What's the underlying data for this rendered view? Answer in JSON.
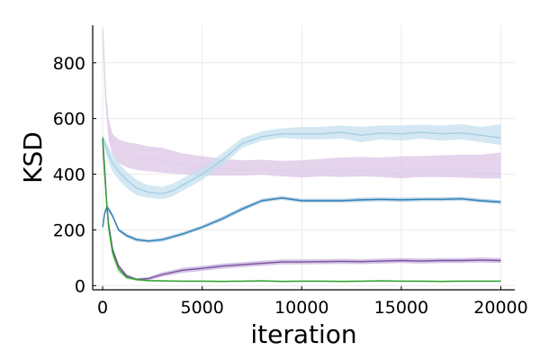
{
  "chart_data": {
    "type": "line",
    "title": "",
    "xlabel": "iteration",
    "ylabel": "KSD",
    "xlim": [
      -500,
      20700
    ],
    "ylim": [
      -15,
      935
    ],
    "xticks": [
      0,
      5000,
      10000,
      15000,
      20000
    ],
    "xtick_labels": [
      "0",
      "5000",
      "10000",
      "15000",
      "20000"
    ],
    "yticks": [
      0,
      200,
      400,
      600,
      800
    ],
    "ytick_labels": [
      "0",
      "200",
      "400",
      "600",
      "800"
    ],
    "grid": true,
    "legend": "none",
    "series": [
      {
        "color": "#e2cfe9",
        "band_color": "#dcc6e6",
        "x": [
          0,
          150,
          300,
          500,
          800,
          1200,
          1700,
          2300,
          3000,
          4000,
          5000,
          6000,
          7000,
          8000,
          9000,
          10000,
          11000,
          12000,
          13000,
          14000,
          15000,
          16000,
          17000,
          18000,
          19000,
          20000
        ],
        "mean": [
          920,
          680,
          560,
          505,
          480,
          465,
          460,
          455,
          450,
          435,
          425,
          418,
          415,
          420,
          412,
          410,
          415,
          410,
          412,
          408,
          405,
          412,
          410,
          408,
          405,
          402
        ],
        "lower": [
          915,
          650,
          520,
          470,
          440,
          425,
          415,
          410,
          405,
          400,
          395,
          395,
          395,
          398,
          392,
          388,
          392,
          390,
          392,
          390,
          385,
          390,
          390,
          388,
          385,
          385
        ],
        "upper": [
          925,
          710,
          600,
          545,
          525,
          515,
          510,
          500,
          495,
          475,
          465,
          455,
          450,
          452,
          448,
          450,
          455,
          460,
          462,
          460,
          465,
          465,
          468,
          470,
          470,
          478
        ]
      },
      {
        "color": "#a6cee3",
        "band_color": "#c4e0ee",
        "x": [
          0,
          150,
          300,
          500,
          800,
          1200,
          1700,
          2300,
          3000,
          3500,
          4000,
          5000,
          6000,
          7000,
          8000,
          9000,
          10000,
          11000,
          12000,
          13000,
          14000,
          15000,
          16000,
          17000,
          18000,
          19000,
          20000
        ],
        "mean": [
          535,
          500,
          470,
          440,
          410,
          380,
          350,
          335,
          330,
          340,
          360,
          400,
          450,
          510,
          535,
          545,
          545,
          545,
          550,
          540,
          548,
          545,
          550,
          545,
          548,
          540,
          530
        ],
        "lower": [
          530,
          480,
          440,
          410,
          380,
          350,
          325,
          315,
          310,
          320,
          340,
          380,
          430,
          495,
          520,
          530,
          525,
          525,
          528,
          515,
          525,
          520,
          528,
          520,
          525,
          515,
          505
        ],
        "upper": [
          540,
          520,
          500,
          470,
          440,
          410,
          380,
          360,
          355,
          365,
          385,
          425,
          475,
          530,
          555,
          565,
          570,
          570,
          575,
          570,
          575,
          575,
          578,
          575,
          580,
          570,
          580
        ]
      },
      {
        "color": "#2e7db5",
        "band_color": "#a9c9e2",
        "x": [
          0,
          100,
          200,
          300,
          500,
          800,
          1200,
          1700,
          2300,
          3000,
          3500,
          4000,
          5000,
          6000,
          7000,
          8000,
          9000,
          10000,
          11000,
          12000,
          13000,
          14000,
          15000,
          16000,
          17000,
          18000,
          19000,
          20000
        ],
        "mean": [
          210,
          260,
          280,
          275,
          250,
          200,
          180,
          165,
          160,
          165,
          175,
          185,
          210,
          240,
          275,
          305,
          315,
          305,
          305,
          305,
          308,
          310,
          308,
          310,
          310,
          312,
          305,
          300
        ],
        "lower": [
          205,
          250,
          270,
          265,
          242,
          193,
          173,
          158,
          154,
          158,
          168,
          178,
          203,
          232,
          267,
          298,
          308,
          298,
          298,
          298,
          300,
          303,
          300,
          303,
          303,
          305,
          298,
          293
        ],
        "upper": [
          215,
          270,
          290,
          285,
          258,
          207,
          187,
          172,
          166,
          172,
          182,
          192,
          217,
          248,
          283,
          312,
          322,
          312,
          312,
          312,
          316,
          317,
          316,
          317,
          317,
          319,
          312,
          307
        ]
      },
      {
        "color": "#7b509e",
        "band_color": "#c7b2dc",
        "x": [
          0,
          100,
          200,
          300,
          500,
          800,
          1200,
          1700,
          2300,
          3000,
          4000,
          5000,
          6000,
          7000,
          8000,
          9000,
          10000,
          11000,
          12000,
          13000,
          14000,
          15000,
          16000,
          17000,
          18000,
          19000,
          20000
        ],
        "mean": [
          520,
          400,
          300,
          220,
          130,
          70,
          35,
          22,
          25,
          40,
          55,
          62,
          70,
          75,
          80,
          85,
          85,
          86,
          87,
          86,
          88,
          90,
          88,
          90,
          90,
          92,
          90
        ],
        "lower": [
          515,
          385,
          285,
          205,
          120,
          62,
          28,
          17,
          19,
          32,
          46,
          53,
          61,
          66,
          71,
          76,
          76,
          77,
          78,
          77,
          79,
          81,
          79,
          81,
          81,
          83,
          81
        ],
        "upper": [
          525,
          415,
          315,
          235,
          140,
          78,
          42,
          27,
          31,
          48,
          64,
          71,
          79,
          84,
          89,
          94,
          94,
          95,
          96,
          95,
          97,
          99,
          97,
          99,
          99,
          101,
          99
        ]
      },
      {
        "color": "#2ca02c",
        "band_color": "#9fd99a",
        "x": [
          0,
          100,
          200,
          300,
          500,
          800,
          1200,
          1700,
          2300,
          3000,
          4000,
          5000,
          6000,
          7000,
          8000,
          9000,
          10000,
          11000,
          12000,
          13000,
          14000,
          15000,
          16000,
          17000,
          18000,
          19000,
          20000
        ],
        "mean": [
          530,
          420,
          300,
          210,
          120,
          60,
          30,
          22,
          18,
          17,
          16,
          16,
          15,
          16,
          17,
          15,
          16,
          16,
          15,
          16,
          17,
          16,
          16,
          15,
          16,
          16,
          16
        ],
        "lower": [
          520,
          395,
          270,
          185,
          100,
          48,
          24,
          18,
          15,
          14,
          13,
          13,
          12,
          13,
          14,
          12,
          13,
          13,
          12,
          13,
          14,
          13,
          13,
          12,
          13,
          13,
          13
        ],
        "upper": [
          540,
          445,
          330,
          235,
          140,
          72,
          36,
          26,
          21,
          20,
          19,
          19,
          18,
          19,
          20,
          18,
          19,
          19,
          18,
          19,
          20,
          19,
          19,
          18,
          19,
          19,
          19
        ]
      }
    ]
  }
}
